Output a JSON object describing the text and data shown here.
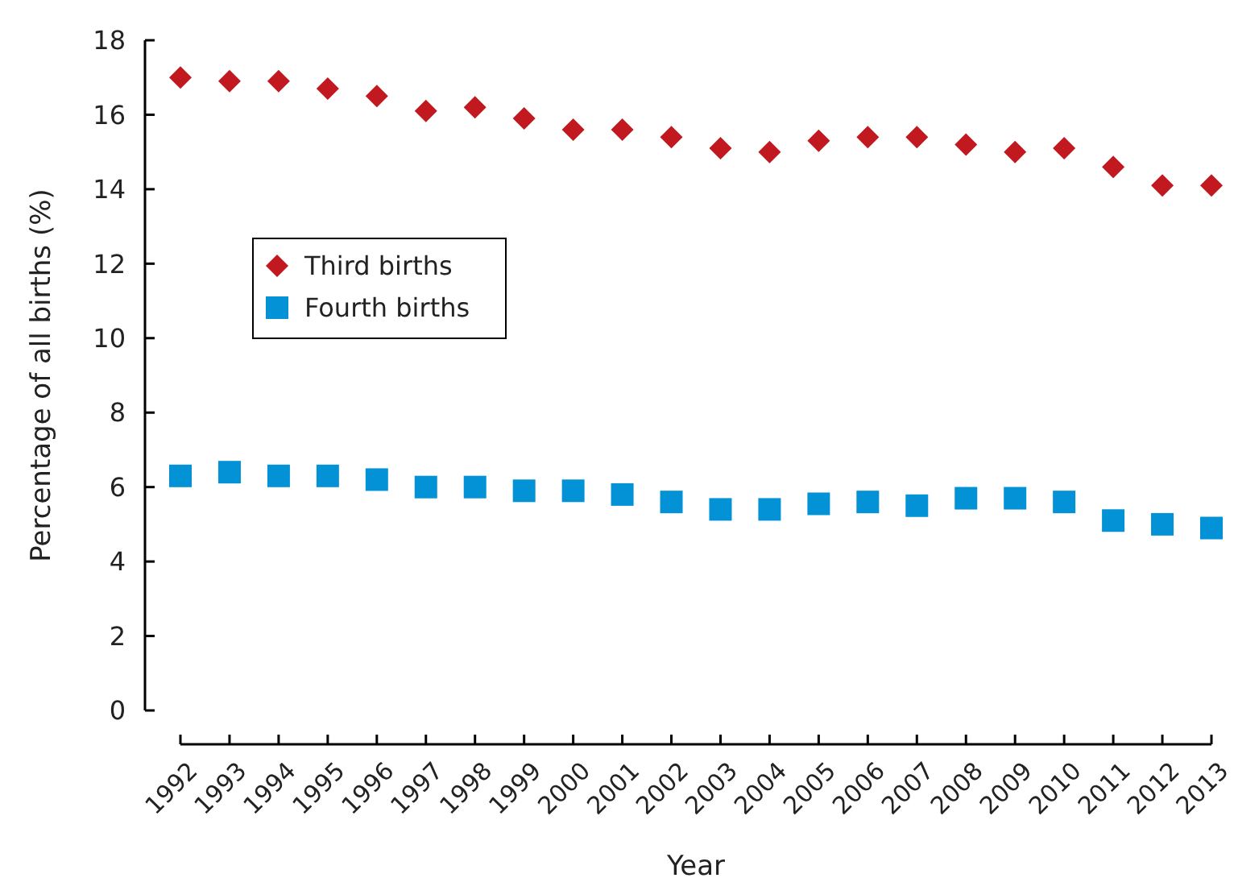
{
  "chart_data": {
    "type": "scatter",
    "xlabel": "Year",
    "ylabel": "Percentage of all births (%)",
    "categories": [
      "1992",
      "1993",
      "1994",
      "1995",
      "1996",
      "1997",
      "1998",
      "1999",
      "2000",
      "2001",
      "2002",
      "2003",
      "2004",
      "2005",
      "2006",
      "2007",
      "2008",
      "2009",
      "2010",
      "2011",
      "2012",
      "2013"
    ],
    "series": [
      {
        "name": "Third births",
        "color": "#c1191f",
        "marker": "diamond",
        "values": [
          17.0,
          16.9,
          16.9,
          16.7,
          16.5,
          16.1,
          16.2,
          15.9,
          15.6,
          15.6,
          15.4,
          15.1,
          15.0,
          15.3,
          15.4,
          15.4,
          15.2,
          15.0,
          15.1,
          14.6,
          14.1,
          14.1
        ]
      },
      {
        "name": "Fourth births",
        "color": "#0392d6",
        "marker": "square",
        "values": [
          6.3,
          6.4,
          6.3,
          6.3,
          6.2,
          6.0,
          6.0,
          5.9,
          5.9,
          5.8,
          5.6,
          5.4,
          5.4,
          5.55,
          5.6,
          5.5,
          5.7,
          5.7,
          5.6,
          5.1,
          5.0,
          4.9
        ]
      }
    ],
    "ylim": [
      0,
      18
    ],
    "yticks": [
      0,
      2,
      4,
      6,
      8,
      10,
      12,
      14,
      16,
      18
    ],
    "grid": false,
    "legend": "top left"
  }
}
